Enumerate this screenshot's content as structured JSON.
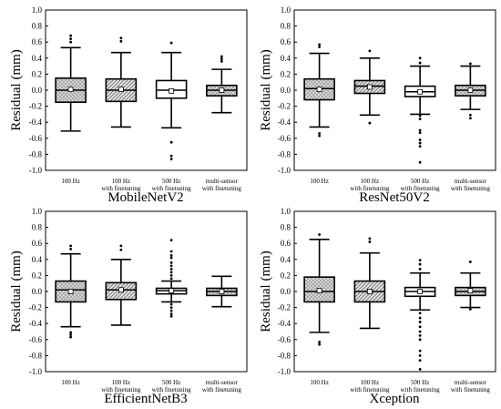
{
  "figure": {
    "hatch_colors": {
      "crosshatch": "#c8c8c8",
      "diagonal": "#b4b4b4",
      "line": "#000000"
    }
  },
  "chart_data": [
    {
      "type": "box",
      "title": "MobileNetV2",
      "ylabel": "Residual (mm)",
      "ylim": [
        -1.0,
        1.0
      ],
      "yticks": [
        -1.0,
        -0.8,
        -0.6,
        -0.4,
        -0.2,
        0.0,
        0.2,
        0.4,
        0.6,
        0.8,
        1.0
      ],
      "ytick_labels": [
        "-1.0",
        "-0.8",
        "-0.6",
        "-0.4",
        "-0.2",
        "0.0",
        "0.2",
        "0.4",
        "0.6",
        "0.8",
        "1.0"
      ],
      "categories": [
        {
          "line1": "100 Hz",
          "line2": ""
        },
        {
          "line1": "100 Hz",
          "line2": "with finetuning"
        },
        {
          "line1": "500 Hz",
          "line2": "with finetuning"
        },
        {
          "line1": "multi-sensor",
          "line2": "with finetuning"
        }
      ],
      "boxes": [
        {
          "fill": "crosshatch",
          "q1": -0.15,
          "median": 0.0,
          "q3": 0.15,
          "whisker_low": -0.51,
          "whisker_high": 0.53,
          "mean": 0.01,
          "outliers": [
            0.6,
            0.64,
            0.68
          ]
        },
        {
          "fill": "diagonal",
          "q1": -0.14,
          "median": 0.0,
          "q3": 0.14,
          "whisker_low": -0.46,
          "whisker_high": 0.47,
          "mean": 0.01,
          "outliers": [
            0.61,
            0.65
          ]
        },
        {
          "fill": "white",
          "q1": -0.1,
          "median": 0.0,
          "q3": 0.12,
          "whisker_low": -0.47,
          "whisker_high": 0.47,
          "mean": -0.01,
          "outliers": [
            0.59,
            -0.65,
            -0.82,
            -0.86
          ]
        },
        {
          "fill": "crosshatch",
          "q1": -0.07,
          "median": 0.0,
          "q3": 0.06,
          "whisker_low": -0.28,
          "whisker_high": 0.26,
          "mean": 0.0,
          "outliers": [
            0.36,
            0.39,
            0.42
          ]
        }
      ]
    },
    {
      "type": "box",
      "title": "ResNet50V2",
      "ylabel": "Residual (mm)",
      "ylim": [
        -1.0,
        1.0
      ],
      "yticks": [
        -1.0,
        -0.8,
        -0.6,
        -0.4,
        -0.2,
        0.0,
        0.2,
        0.4,
        0.6,
        0.8,
        1.0
      ],
      "ytick_labels": [
        "-1.0",
        "-0.8",
        "-0.6",
        "-0.4",
        "-0.2",
        "0.0",
        "0.2",
        "0.4",
        "0.6",
        "0.8",
        "1.0"
      ],
      "categories": [
        {
          "line1": "100 Hz",
          "line2": ""
        },
        {
          "line1": "100 Hz",
          "line2": "with finetuning"
        },
        {
          "line1": "500 Hz",
          "line2": "with finetuning"
        },
        {
          "line1": "multi-sensor",
          "line2": "with finetuning"
        }
      ],
      "boxes": [
        {
          "fill": "crosshatch",
          "q1": -0.12,
          "median": 0.02,
          "q3": 0.14,
          "whisker_low": -0.46,
          "whisker_high": 0.46,
          "mean": 0.01,
          "outliers": [
            0.54,
            0.57,
            -0.54,
            -0.57
          ]
        },
        {
          "fill": "diagonal",
          "q1": -0.04,
          "median": 0.05,
          "q3": 0.12,
          "whisker_low": -0.31,
          "whisker_high": 0.4,
          "mean": 0.04,
          "outliers": [
            0.49,
            -0.41
          ]
        },
        {
          "fill": "white",
          "q1": -0.08,
          "median": -0.02,
          "q3": 0.05,
          "whisker_low": -0.3,
          "whisker_high": 0.3,
          "mean": -0.02,
          "outliers": [
            0.34,
            0.4,
            -0.32,
            -0.36,
            -0.5,
            -0.53,
            -0.62,
            -0.66,
            -0.7,
            -0.9
          ]
        },
        {
          "fill": "crosshatch",
          "q1": -0.07,
          "median": 0.0,
          "q3": 0.06,
          "whisker_low": -0.24,
          "whisker_high": 0.3,
          "mean": 0.0,
          "outliers": [
            0.33,
            -0.31,
            -0.35
          ]
        }
      ]
    },
    {
      "type": "box",
      "title": "EfficientNetB3",
      "ylabel": "Residual (mm)",
      "ylim": [
        -1.0,
        1.0
      ],
      "yticks": [
        -1.0,
        -0.8,
        -0.6,
        -0.4,
        -0.2,
        0.0,
        0.2,
        0.4,
        0.6,
        0.8,
        1.0
      ],
      "ytick_labels": [
        "-1.0",
        "-0.8",
        "-0.6",
        "-0.4",
        "-0.2",
        "0.0",
        "0.2",
        "0.4",
        "0.6",
        "0.8",
        "1.0"
      ],
      "categories": [
        {
          "line1": "100 Hz",
          "line2": ""
        },
        {
          "line1": "100 Hz",
          "line2": "with finetuning"
        },
        {
          "line1": "500 Hz",
          "line2": "with finetuning"
        },
        {
          "line1": "multi-sensor",
          "line2": "with finetuning"
        }
      ],
      "boxes": [
        {
          "fill": "crosshatch",
          "q1": -0.13,
          "median": 0.02,
          "q3": 0.13,
          "whisker_low": -0.44,
          "whisker_high": 0.47,
          "mean": 0.0,
          "outliers": [
            0.53,
            0.57,
            -0.51,
            -0.54,
            -0.57
          ]
        },
        {
          "fill": "diagonal",
          "q1": -0.1,
          "median": 0.02,
          "q3": 0.11,
          "whisker_low": -0.42,
          "whisker_high": 0.4,
          "mean": 0.02,
          "outliers": [
            0.52,
            0.57
          ]
        },
        {
          "fill": "white",
          "q1": -0.03,
          "median": 0.01,
          "q3": 0.04,
          "whisker_low": -0.13,
          "whisker_high": 0.13,
          "mean": 0.01,
          "outliers": [
            0.16,
            0.2,
            0.24,
            0.28,
            0.32,
            0.36,
            0.42,
            0.45,
            0.5,
            0.64,
            -0.16,
            -0.2,
            -0.24,
            -0.28,
            -0.31
          ]
        },
        {
          "fill": "crosshatch",
          "q1": -0.05,
          "median": 0.0,
          "q3": 0.04,
          "whisker_low": -0.19,
          "whisker_high": 0.19,
          "mean": 0.0,
          "outliers": []
        }
      ]
    },
    {
      "type": "box",
      "title": "Xception",
      "ylabel": "Residual (mm)",
      "ylim": [
        -1.0,
        1.0
      ],
      "yticks": [
        -1.0,
        -0.8,
        -0.6,
        -0.4,
        -0.2,
        0.0,
        0.2,
        0.4,
        0.6,
        0.8,
        1.0
      ],
      "ytick_labels": [
        "-1.0",
        "-0.8",
        "-0.6",
        "-0.4",
        "-0.2",
        "0.0",
        "0.2",
        "0.4",
        "0.6",
        "0.8",
        "1.0"
      ],
      "categories": [
        {
          "line1": "100 Hz",
          "line2": ""
        },
        {
          "line1": "100 Hz",
          "line2": "with finetuning"
        },
        {
          "line1": "500 Hz",
          "line2": "with finetuning"
        },
        {
          "line1": "multi-sensor",
          "line2": "with finetuning"
        }
      ],
      "boxes": [
        {
          "fill": "crosshatch",
          "q1": -0.13,
          "median": 0.0,
          "q3": 0.18,
          "whisker_low": -0.51,
          "whisker_high": 0.65,
          "mean": 0.01,
          "outliers": [
            0.71,
            -0.63,
            -0.66
          ]
        },
        {
          "fill": "diagonal",
          "q1": -0.13,
          "median": 0.0,
          "q3": 0.13,
          "whisker_low": -0.46,
          "whisker_high": 0.48,
          "mean": 0.0,
          "outliers": [
            0.62,
            0.66
          ]
        },
        {
          "fill": "white",
          "q1": -0.06,
          "median": 0.0,
          "q3": 0.05,
          "whisker_low": -0.23,
          "whisker_high": 0.23,
          "mean": 0.0,
          "outliers": [
            0.28,
            0.34,
            0.39,
            -0.27,
            -0.33,
            -0.38,
            -0.44,
            -0.5,
            -0.55,
            -0.6,
            -0.74,
            -0.8,
            -0.86,
            -0.97
          ]
        },
        {
          "fill": "crosshatch",
          "q1": -0.05,
          "median": 0.0,
          "q3": 0.05,
          "whisker_low": -0.2,
          "whisker_high": 0.23,
          "mean": 0.01,
          "outliers": [
            0.37,
            -0.22
          ]
        }
      ]
    }
  ]
}
